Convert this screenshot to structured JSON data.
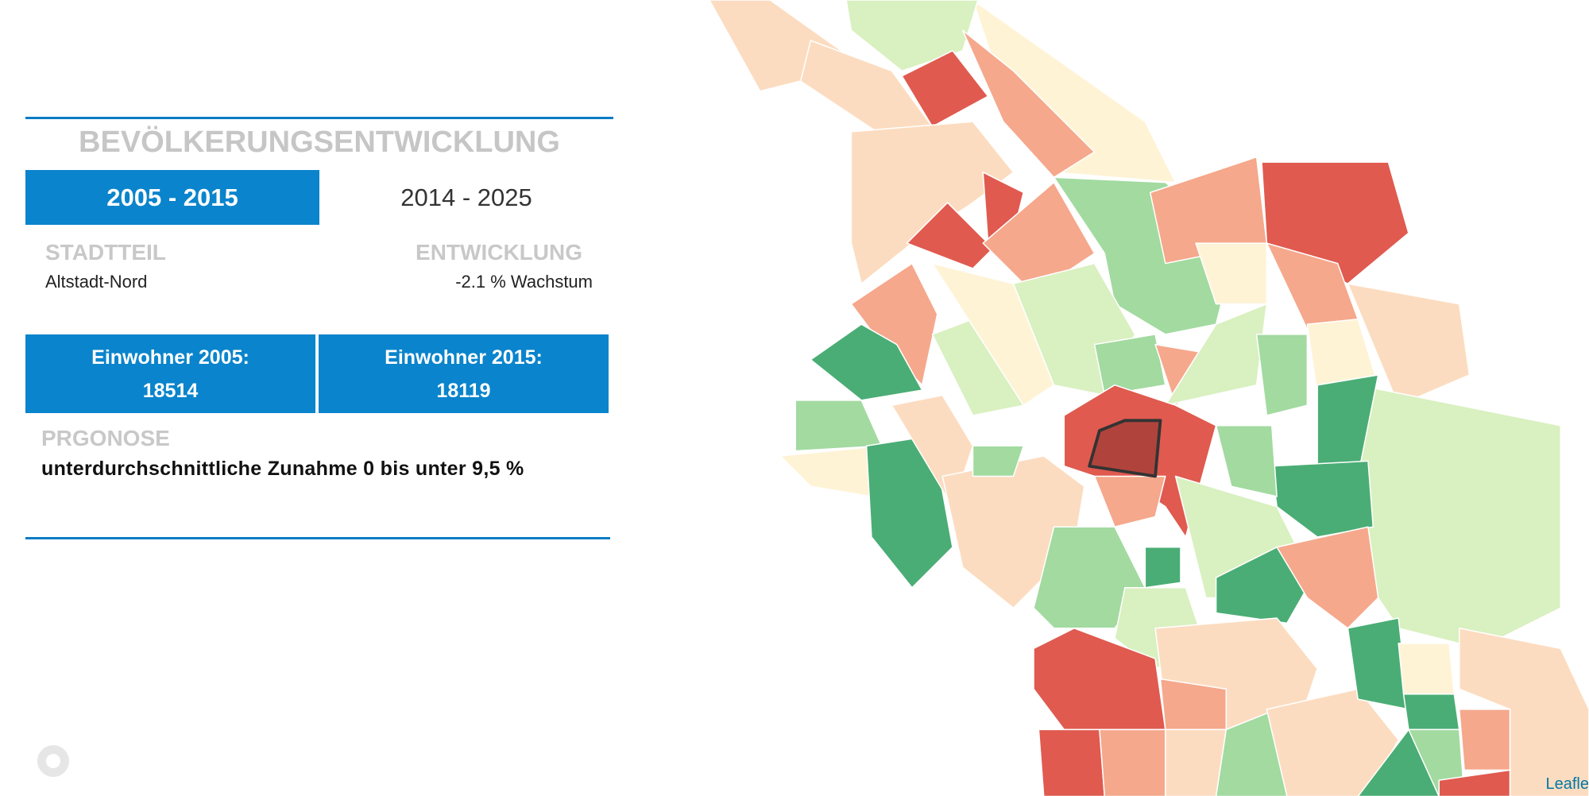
{
  "header": {
    "title": "BEVÖLKERUNGSENTWICKLUNG"
  },
  "tabs": [
    {
      "label": "2005 - 2015",
      "active": true
    },
    {
      "label": "2014 - 2025",
      "active": false
    }
  ],
  "district": {
    "label": "STADTTEIL",
    "value": "Altstadt-Nord"
  },
  "development": {
    "label": "ENTWICKLUNG",
    "value": "-2.1 % Wachstum"
  },
  "stats": [
    {
      "label": "Einwohner 2005:",
      "value": "18514"
    },
    {
      "label": "Einwohner 2015:",
      "value": "18119"
    }
  ],
  "forecast": {
    "label": "PRGONOSE",
    "value": "unterdurchschnittliche Zunahme 0 bis unter 9,5 %"
  },
  "attribution": "Leafle"
}
